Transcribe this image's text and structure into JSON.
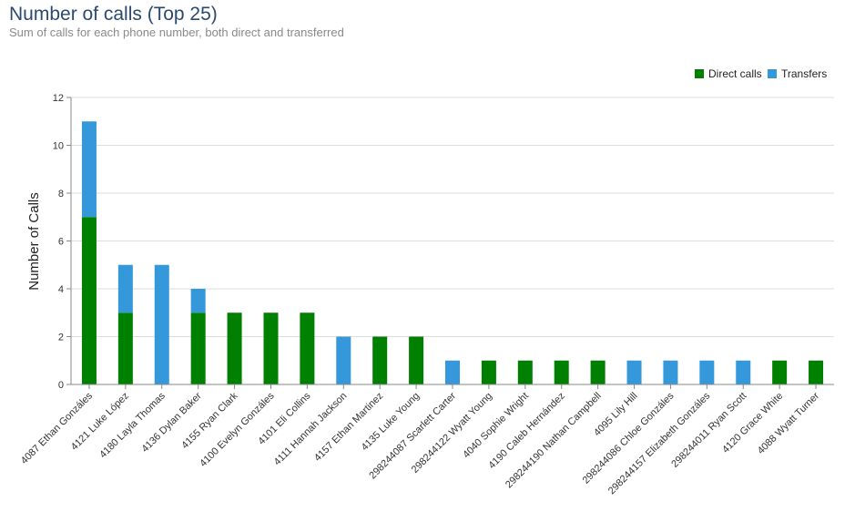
{
  "header": {
    "title": "Number of calls (Top 25)",
    "subtitle": "Sum of calls for each phone number, both direct and transferred"
  },
  "chart_data": {
    "type": "bar",
    "stacked": true,
    "title": "Number of calls (Top 25)",
    "subtitle": "Sum of calls for each phone number, both direct and transferred",
    "xlabel": "",
    "ylabel": "Number of Calls",
    "ylim": [
      0,
      12
    ],
    "yticks": [
      0,
      2,
      4,
      6,
      8,
      10,
      12
    ],
    "grid": true,
    "legend_position": "top-right",
    "categories": [
      "4087 Ethan Gonzáles",
      "4121 Luke López",
      "4180 Layla Thomas",
      "4136 Dylan Baker",
      "4155 Ryan Clark",
      "4100 Evelyn Gonzáles",
      "4101 Eli Collins",
      "4111 Hannah Jackson",
      "4157 Ethan Martinez",
      "4135 Luke Young",
      "298244087 Scarlett Carter",
      "298244122 Wyatt Young",
      "4040 Sophie Wright",
      "4190 Caleb Hernández",
      "298244190 Nathan Campbell",
      "4095 Lily Hill",
      "298244086 Chloe Gonzáles",
      "298244157 Elizabeth Gonzáles",
      "298244011 Ryan Scott",
      "4120 Grace White",
      "4088 Wyatt Turner"
    ],
    "series": [
      {
        "name": "Direct calls",
        "color": "#008000",
        "values": [
          7,
          3,
          0,
          3,
          3,
          3,
          3,
          0,
          2,
          2,
          0,
          1,
          1,
          1,
          1,
          0,
          0,
          0,
          0,
          1,
          1
        ]
      },
      {
        "name": "Transfers",
        "color": "#3598db",
        "values": [
          4,
          2,
          5,
          1,
          0,
          0,
          0,
          2,
          0,
          0,
          1,
          0,
          0,
          0,
          0,
          1,
          1,
          1,
          1,
          0,
          0
        ]
      }
    ]
  }
}
